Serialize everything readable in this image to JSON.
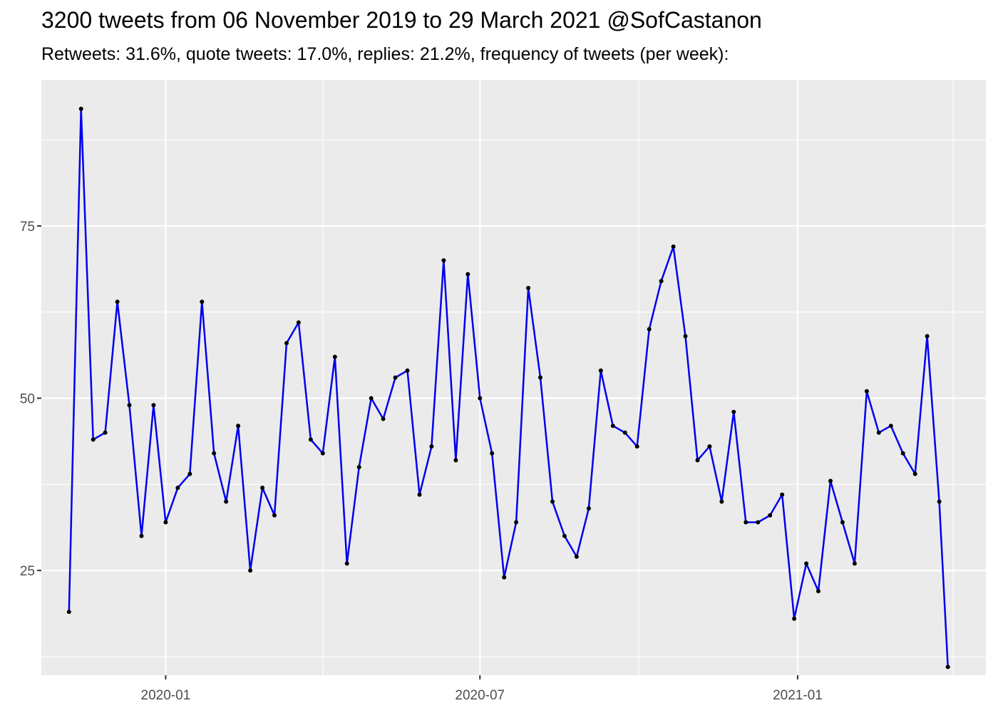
{
  "title": "3200 tweets from 06 November 2019 to 29 March 2021 @SofCastanon",
  "subtitle": "Retweets: 31.6%, quote tweets: 17.0%, replies: 21.2%, frequency of tweets (per week):",
  "chart_data": {
    "type": "line",
    "title": "3200 tweets from 06 November 2019 to 29 March 2021 @SofCastanon",
    "subtitle": "Retweets: 31.6%, quote tweets: 17.0%, replies: 21.2%, frequency of tweets (per week):",
    "xlabel": "",
    "ylabel": "",
    "x_type": "date",
    "xlim": [
      "2019-10-21",
      "2021-04-20"
    ],
    "ylim": [
      9.8,
      96.2
    ],
    "y_ticks": [
      25,
      50,
      75
    ],
    "y_minor_ticks": [
      12.5,
      37.5,
      62.5,
      87.5
    ],
    "x_ticks": [
      {
        "date": "2020-01-01",
        "label": "2020-01"
      },
      {
        "date": "2020-07-01",
        "label": "2020-07"
      },
      {
        "date": "2021-01-01",
        "label": "2021-01"
      }
    ],
    "x_minor_ticks": [
      "2019-10-01",
      "2020-04-01",
      "2020-10-01",
      "2021-04-01"
    ],
    "grid": true,
    "colors": {
      "line": "#0000ee",
      "point": "#000000",
      "panel": "#ebebeb",
      "grid": "#ffffff"
    },
    "series": [
      {
        "x": [
          "2019-11-06",
          "2019-11-13",
          "2019-11-20",
          "2019-11-27",
          "2019-12-04",
          "2019-12-11",
          "2019-12-18",
          "2019-12-25",
          "2020-01-01",
          "2020-01-08",
          "2020-01-15",
          "2020-01-22",
          "2020-01-29",
          "2020-02-05",
          "2020-02-12",
          "2020-02-19",
          "2020-02-26",
          "2020-03-04",
          "2020-03-11",
          "2020-03-18",
          "2020-03-25",
          "2020-04-01",
          "2020-04-08",
          "2020-04-15",
          "2020-04-22",
          "2020-04-29",
          "2020-05-06",
          "2020-05-13",
          "2020-05-20",
          "2020-05-27",
          "2020-06-03",
          "2020-06-10",
          "2020-06-17",
          "2020-06-24",
          "2020-07-01",
          "2020-07-08",
          "2020-07-15",
          "2020-07-22",
          "2020-07-29",
          "2020-08-05",
          "2020-08-12",
          "2020-08-19",
          "2020-08-26",
          "2020-09-02",
          "2020-09-09",
          "2020-09-16",
          "2020-09-23",
          "2020-09-30",
          "2020-10-07",
          "2020-10-14",
          "2020-10-21",
          "2020-10-28",
          "2020-11-04",
          "2020-11-11",
          "2020-11-18",
          "2020-11-25",
          "2020-12-02",
          "2020-12-09",
          "2020-12-16",
          "2020-12-23",
          "2020-12-30",
          "2021-01-06",
          "2021-01-13",
          "2021-01-20",
          "2021-01-27",
          "2021-02-03",
          "2021-02-10",
          "2021-02-17",
          "2021-02-24",
          "2021-03-03",
          "2021-03-10",
          "2021-03-17",
          "2021-03-24",
          "2021-03-29"
        ],
        "values": [
          19,
          92,
          44,
          45,
          64,
          49,
          30,
          49,
          32,
          37,
          39,
          64,
          42,
          35,
          46,
          25,
          37,
          33,
          58,
          61,
          44,
          42,
          56,
          26,
          40,
          50,
          47,
          53,
          54,
          36,
          43,
          70,
          41,
          68,
          50,
          42,
          24,
          32,
          66,
          53,
          35,
          30,
          27,
          34,
          54,
          46,
          45,
          43,
          60,
          67,
          72,
          59,
          41,
          43,
          35,
          48,
          32,
          32,
          33,
          36,
          18,
          26,
          22,
          38,
          32,
          26,
          51,
          45,
          46,
          42,
          39,
          59,
          35,
          11
        ]
      }
    ]
  }
}
